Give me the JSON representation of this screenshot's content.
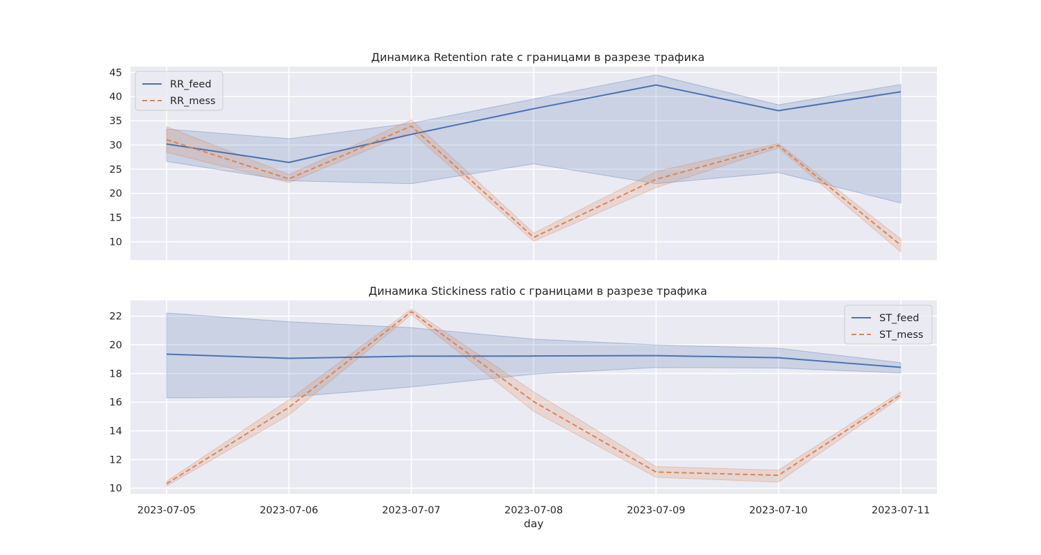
{
  "figure": {
    "background": "#ffffff",
    "axes_facecolor": "#eaeaf2",
    "grid_color": "#ffffff",
    "colors": {
      "feed": "#4c72b0",
      "mess": "#dd8452"
    }
  },
  "chart_data": [
    {
      "type": "line",
      "title": "Динамика Retention rate с границами в разрезе трафика",
      "xlabel": "",
      "ylabel": "",
      "categories": [
        "2023-07-05",
        "2023-07-06",
        "2023-07-07",
        "2023-07-08",
        "2023-07-09",
        "2023-07-10",
        "2023-07-11"
      ],
      "x_ticks_visible": false,
      "ylim": [
        6.2,
        46.2
      ],
      "y_ticks": [
        "10",
        "15",
        "20",
        "25",
        "30",
        "35",
        "40",
        "45"
      ],
      "y_tick_values": [
        10,
        15,
        20,
        25,
        30,
        35,
        40,
        45
      ],
      "grid": true,
      "legend": "upper left",
      "series": [
        {
          "name": "RR_feed",
          "style": "solid",
          "color": "#4c72b0",
          "values": [
            30.2,
            26.4,
            32.2,
            37.5,
            42.4,
            37.1,
            41.0
          ],
          "lower": [
            26.6,
            22.6,
            22.0,
            26.1,
            22.0,
            24.3,
            18.0
          ],
          "upper": [
            33.3,
            31.3,
            34.5,
            39.5,
            44.5,
            38.3,
            42.5
          ]
        },
        {
          "name": "RR_mess",
          "style": "dashed",
          "color": "#dd8452",
          "values": [
            31.1,
            23.0,
            33.9,
            10.9,
            22.9,
            29.9,
            9.3
          ],
          "lower": [
            28.5,
            22.2,
            32.7,
            10.1,
            21.2,
            29.4,
            7.9
          ],
          "upper": [
            33.8,
            23.9,
            35.2,
            11.8,
            24.5,
            30.3,
            10.6
          ]
        }
      ]
    },
    {
      "type": "line",
      "title": "Динамика Stickiness ratio с границами в разрезе трафика",
      "xlabel": "day",
      "ylabel": "",
      "categories": [
        "2023-07-05",
        "2023-07-06",
        "2023-07-07",
        "2023-07-08",
        "2023-07-09",
        "2023-07-10",
        "2023-07-11"
      ],
      "x_ticks_visible": true,
      "ylim": [
        9.6,
        23.1
      ],
      "y_ticks": [
        "10",
        "12",
        "14",
        "16",
        "18",
        "20",
        "22"
      ],
      "y_tick_values": [
        10,
        12,
        14,
        16,
        18,
        20,
        22
      ],
      "grid": true,
      "legend": "upper right",
      "series": [
        {
          "name": "ST_feed",
          "style": "solid",
          "color": "#4c72b0",
          "values": [
            19.35,
            19.06,
            19.21,
            19.22,
            19.25,
            19.1,
            18.43
          ],
          "lower": [
            16.3,
            16.35,
            17.06,
            17.96,
            18.42,
            18.38,
            18.04
          ],
          "upper": [
            22.22,
            21.61,
            21.2,
            20.4,
            20.0,
            19.76,
            18.76
          ]
        },
        {
          "name": "ST_mess",
          "style": "dashed",
          "color": "#dd8452",
          "values": [
            10.31,
            15.64,
            22.31,
            16.04,
            11.13,
            10.9,
            16.53
          ],
          "lower": [
            10.15,
            15.1,
            22.1,
            15.36,
            10.76,
            10.43,
            16.35
          ],
          "upper": [
            10.48,
            16.17,
            22.49,
            16.73,
            11.51,
            11.26,
            16.73
          ]
        }
      ]
    }
  ]
}
